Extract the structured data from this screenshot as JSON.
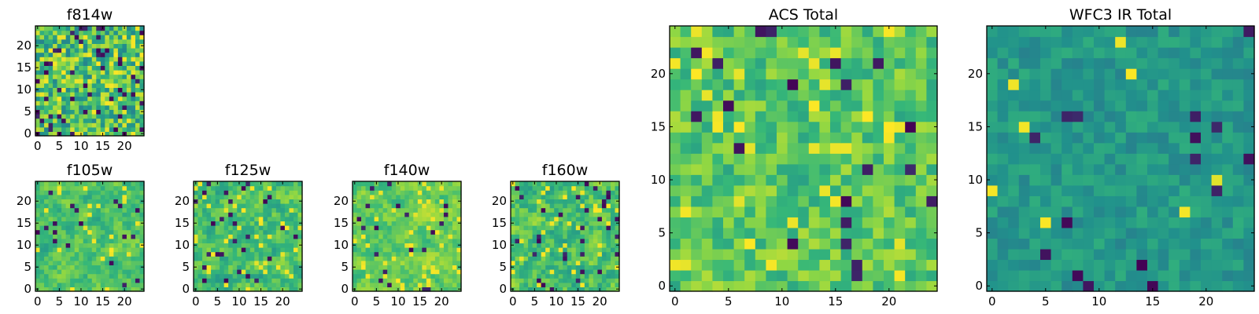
{
  "figure": {
    "colormap": [
      "#440154",
      "#31688e",
      "#21918c",
      "#35b779",
      "#90d743",
      "#fde725"
    ]
  },
  "chart_data": [
    {
      "id": "f814w",
      "type": "heatmap",
      "title": "f814w",
      "xlabel": "",
      "ylabel": "",
      "grid_size": 25,
      "x_ticks": [
        0,
        5,
        10,
        15,
        20
      ],
      "y_ticks": [
        0,
        5,
        10,
        15,
        20
      ],
      "xlim": [
        0,
        25
      ],
      "ylim": [
        0,
        25
      ],
      "seed": 814,
      "base_level": 0.64,
      "spread": 0.3,
      "smoothing": 0.0,
      "dark_fraction": 0.08,
      "bright_fraction": 0.08
    },
    {
      "id": "f105w",
      "type": "heatmap",
      "title": "f105w",
      "xlabel": "",
      "ylabel": "",
      "grid_size": 25,
      "x_ticks": [
        0,
        5,
        10,
        15,
        20
      ],
      "y_ticks": [
        0,
        5,
        10,
        15,
        20
      ],
      "xlim": [
        0,
        25
      ],
      "ylim": [
        0,
        25
      ],
      "seed": 105,
      "base_level": 0.66,
      "spread": 0.22,
      "smoothing": 0.55,
      "dark_fraction": 0.03,
      "bright_fraction": 0.05
    },
    {
      "id": "f125w",
      "type": "heatmap",
      "title": "f125w",
      "xlabel": "",
      "ylabel": "",
      "grid_size": 25,
      "x_ticks": [
        0,
        5,
        10,
        15,
        20
      ],
      "y_ticks": [
        0,
        5,
        10,
        15,
        20
      ],
      "xlim": [
        0,
        25
      ],
      "ylim": [
        0,
        25
      ],
      "seed": 125,
      "base_level": 0.64,
      "spread": 0.24,
      "smoothing": 0.5,
      "dark_fraction": 0.04,
      "bright_fraction": 0.06
    },
    {
      "id": "f140w",
      "type": "heatmap",
      "title": "f140w",
      "xlabel": "",
      "ylabel": "",
      "grid_size": 25,
      "x_ticks": [
        0,
        5,
        10,
        15,
        20
      ],
      "y_ticks": [
        0,
        5,
        10,
        15,
        20
      ],
      "xlim": [
        0,
        25
      ],
      "ylim": [
        0,
        25
      ],
      "seed": 140,
      "base_level": 0.72,
      "spread": 0.2,
      "smoothing": 0.55,
      "dark_fraction": 0.03,
      "bright_fraction": 0.07
    },
    {
      "id": "f160w",
      "type": "heatmap",
      "title": "f160w",
      "xlabel": "",
      "ylabel": "",
      "grid_size": 25,
      "x_ticks": [
        0,
        5,
        10,
        15,
        20
      ],
      "y_ticks": [
        0,
        5,
        10,
        15,
        20
      ],
      "xlim": [
        0,
        25
      ],
      "ylim": [
        0,
        25
      ],
      "seed": 160,
      "base_level": 0.64,
      "spread": 0.24,
      "smoothing": 0.45,
      "dark_fraction": 0.05,
      "bright_fraction": 0.06
    },
    {
      "id": "acs-total",
      "type": "heatmap",
      "title": "ACS Total",
      "xlabel": "",
      "ylabel": "",
      "grid_size": 25,
      "x_ticks": [
        0,
        5,
        10,
        15,
        20
      ],
      "y_ticks": [
        0,
        5,
        10,
        15,
        20
      ],
      "xlim": [
        0,
        25
      ],
      "ylim": [
        0,
        25
      ],
      "seed": 2001,
      "base_level": 0.68,
      "spread": 0.2,
      "smoothing": 0.15,
      "dark_fraction": 0.025,
      "bright_fraction": 0.06
    },
    {
      "id": "wfc3-ir-total",
      "type": "heatmap",
      "title": "WFC3 IR Total",
      "xlabel": "",
      "ylabel": "",
      "grid_size": 25,
      "x_ticks": [
        0,
        5,
        10,
        15,
        20
      ],
      "y_ticks": [
        0,
        5,
        10,
        15,
        20
      ],
      "xlim": [
        0,
        25
      ],
      "ylim": [
        0,
        25
      ],
      "seed": 3001,
      "base_level": 0.44,
      "spread": 0.12,
      "smoothing": 0.1,
      "dark_fraction": 0.03,
      "bright_fraction": 0.008
    }
  ]
}
